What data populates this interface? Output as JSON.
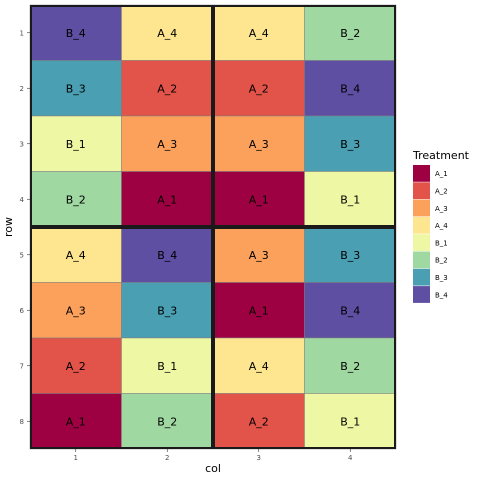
{
  "chart_data": {
    "type": "heatmap",
    "xlabel": "col",
    "ylabel": "row",
    "x_ticks": [
      "1",
      "2",
      "3",
      "4"
    ],
    "y_ticks": [
      "1",
      "2",
      "3",
      "4",
      "5",
      "6",
      "7",
      "8"
    ],
    "grid": false,
    "legend": {
      "title": "Treatment",
      "position": "right",
      "entries": [
        {
          "label": "A_1",
          "color": "#9e0142"
        },
        {
          "label": "A_2",
          "color": "#e25349"
        },
        {
          "label": "A_3",
          "color": "#fba15b"
        },
        {
          "label": "A_4",
          "color": "#fee590"
        },
        {
          "label": "B_1",
          "color": "#eef8a4"
        },
        {
          "label": "B_2",
          "color": "#a0d8a2"
        },
        {
          "label": "B_3",
          "color": "#4a9fb2"
        },
        {
          "label": "B_4",
          "color": "#5e4fa2"
        }
      ]
    },
    "cells": [
      {
        "row": 1,
        "col": 1,
        "treatment": "B_4"
      },
      {
        "row": 1,
        "col": 2,
        "treatment": "A_4"
      },
      {
        "row": 1,
        "col": 3,
        "treatment": "A_4"
      },
      {
        "row": 1,
        "col": 4,
        "treatment": "B_2"
      },
      {
        "row": 2,
        "col": 1,
        "treatment": "B_3"
      },
      {
        "row": 2,
        "col": 2,
        "treatment": "A_2"
      },
      {
        "row": 2,
        "col": 3,
        "treatment": "A_2"
      },
      {
        "row": 2,
        "col": 4,
        "treatment": "B_4"
      },
      {
        "row": 3,
        "col": 1,
        "treatment": "B_1"
      },
      {
        "row": 3,
        "col": 2,
        "treatment": "A_3"
      },
      {
        "row": 3,
        "col": 3,
        "treatment": "A_3"
      },
      {
        "row": 3,
        "col": 4,
        "treatment": "B_3"
      },
      {
        "row": 4,
        "col": 1,
        "treatment": "B_2"
      },
      {
        "row": 4,
        "col": 2,
        "treatment": "A_1"
      },
      {
        "row": 4,
        "col": 3,
        "treatment": "A_1"
      },
      {
        "row": 4,
        "col": 4,
        "treatment": "B_1"
      },
      {
        "row": 5,
        "col": 1,
        "treatment": "A_4"
      },
      {
        "row": 5,
        "col": 2,
        "treatment": "B_4"
      },
      {
        "row": 5,
        "col": 3,
        "treatment": "A_3"
      },
      {
        "row": 5,
        "col": 4,
        "treatment": "B_3"
      },
      {
        "row": 6,
        "col": 1,
        "treatment": "A_3"
      },
      {
        "row": 6,
        "col": 2,
        "treatment": "B_3"
      },
      {
        "row": 6,
        "col": 3,
        "treatment": "A_1"
      },
      {
        "row": 6,
        "col": 4,
        "treatment": "B_4"
      },
      {
        "row": 7,
        "col": 1,
        "treatment": "A_2"
      },
      {
        "row": 7,
        "col": 2,
        "treatment": "B_1"
      },
      {
        "row": 7,
        "col": 3,
        "treatment": "A_4"
      },
      {
        "row": 7,
        "col": 4,
        "treatment": "B_2"
      },
      {
        "row": 8,
        "col": 1,
        "treatment": "A_1"
      },
      {
        "row": 8,
        "col": 2,
        "treatment": "B_2"
      },
      {
        "row": 8,
        "col": 3,
        "treatment": "A_2"
      },
      {
        "row": 8,
        "col": 4,
        "treatment": "B_1"
      }
    ],
    "blocks": [
      {
        "rows": [
          1,
          4
        ],
        "cols": [
          1,
          2
        ]
      },
      {
        "rows": [
          1,
          4
        ],
        "cols": [
          3,
          4
        ]
      },
      {
        "rows": [
          5,
          8
        ],
        "cols": [
          1,
          2
        ]
      },
      {
        "rows": [
          5,
          8
        ],
        "cols": [
          3,
          4
        ]
      }
    ]
  }
}
